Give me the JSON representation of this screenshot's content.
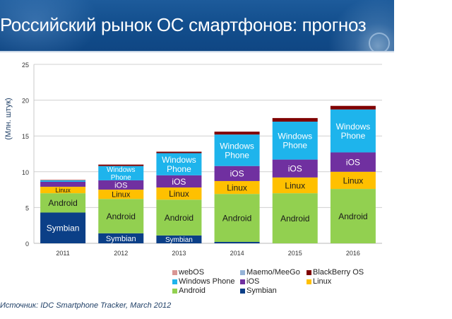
{
  "header": {
    "title": "Российский рынок ОС смартфонов: прогноз"
  },
  "chart_data": {
    "type": "bar",
    "stacked": true,
    "title": "Российский рынок ОС смартфонов: прогноз",
    "xlabel": "",
    "ylabel": "(Млн. штук)",
    "ylim": [
      0,
      25
    ],
    "yticks": [
      0,
      5,
      10,
      15,
      20,
      25
    ],
    "grid": true,
    "legend_position": "bottom-right",
    "categories": [
      "2011",
      "2012",
      "2013",
      "2014",
      "2015",
      "2016"
    ],
    "series": [
      {
        "name": "Symbian",
        "color": "#0b3f87",
        "values": [
          4.3,
          1.4,
          1.1,
          0.2,
          0.0,
          0.0
        ],
        "labels": [
          "Symbian",
          "Symbian",
          "Symbian",
          "",
          "",
          ""
        ]
      },
      {
        "name": "Android",
        "color": "#92d050",
        "values": [
          2.7,
          4.8,
          5.0,
          6.7,
          7.0,
          7.6
        ],
        "labels": [
          "Android",
          "Android",
          "Android",
          "Android",
          "Android",
          "Android"
        ]
      },
      {
        "name": "Linux",
        "color": "#ffc000",
        "values": [
          0.9,
          1.3,
          1.7,
          1.8,
          2.2,
          2.4
        ],
        "labels": [
          "Linux",
          "Linux",
          "Linux",
          "Linux",
          "Linux",
          "Linux"
        ]
      },
      {
        "name": "iOS",
        "color": "#7030a0",
        "values": [
          0.7,
          1.3,
          1.7,
          2.1,
          2.5,
          2.7
        ],
        "labels": [
          "",
          "iOS",
          "iOS",
          "iOS",
          "iOS",
          "iOS"
        ]
      },
      {
        "name": "Windows Phone",
        "color": "#1eb4ec",
        "values": [
          0.2,
          2.0,
          3.1,
          4.4,
          5.3,
          6.0
        ],
        "labels": [
          "",
          "Windows Phone",
          "Windows Phone",
          "Windows Phone",
          "Windows Phone",
          "Windows Phone"
        ]
      },
      {
        "name": "Maemo/MeeGo",
        "color": "#95b3d7",
        "values": [
          0.0,
          0.0,
          0.0,
          0.0,
          0.0,
          0.0
        ],
        "labels": [
          "",
          "",
          "",
          "",
          "",
          ""
        ]
      },
      {
        "name": "webOS",
        "color": "#d99694",
        "values": [
          0.0,
          0.0,
          0.0,
          0.0,
          0.0,
          0.0
        ],
        "labels": [
          "",
          "",
          "",
          "",
          "",
          ""
        ]
      },
      {
        "name": "BlackBerry OS",
        "color": "#7f0000",
        "values": [
          0.05,
          0.2,
          0.2,
          0.4,
          0.5,
          0.5
        ],
        "labels": [
          "",
          "",
          "",
          "",
          "",
          ""
        ]
      }
    ],
    "legend": [
      {
        "name": "webOS",
        "color": "#d99694"
      },
      {
        "name": "Maemo/MeeGo",
        "color": "#95b3d7"
      },
      {
        "name": "BlackBerry OS",
        "color": "#7f0000"
      },
      {
        "name": "Windows Phone",
        "color": "#1eb4ec"
      },
      {
        "name": "iOS",
        "color": "#7030a0"
      },
      {
        "name": "Linux",
        "color": "#ffc000"
      },
      {
        "name": "Android",
        "color": "#92d050"
      },
      {
        "name": "Symbian",
        "color": "#0b3f87"
      }
    ]
  },
  "footer": {
    "source": "Источник: IDC Smartphone Tracker, March 2012"
  }
}
